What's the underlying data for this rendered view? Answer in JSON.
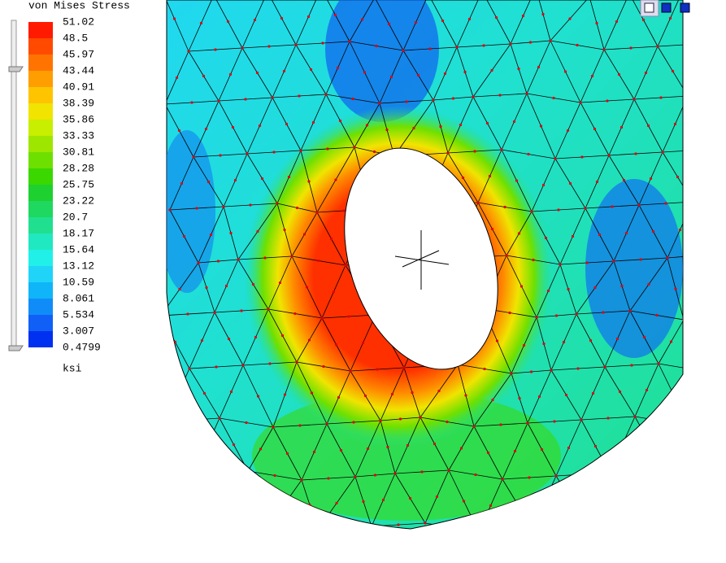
{
  "legend": {
    "title": "von Mises Stress",
    "values": [
      51.02,
      48.5,
      45.97,
      43.44,
      40.91,
      38.39,
      35.86,
      33.33,
      30.81,
      28.28,
      25.75,
      23.22,
      20.7,
      18.17,
      15.64,
      13.12,
      10.59,
      8.061,
      5.534,
      3.007,
      0.4799
    ],
    "colors": [
      "#ff1a00",
      "#ff4a00",
      "#ff7400",
      "#ff9e00",
      "#ffc400",
      "#f0e400",
      "#c8ee00",
      "#9ee600",
      "#6ee000",
      "#3ad800",
      "#1ed030",
      "#1ed860",
      "#20e090",
      "#20e8c0",
      "#20f0e8",
      "#20d4f8",
      "#10b4f8",
      "#108cf8",
      "#1060f8",
      "#0030f0"
    ],
    "unit": "ksi"
  }
}
